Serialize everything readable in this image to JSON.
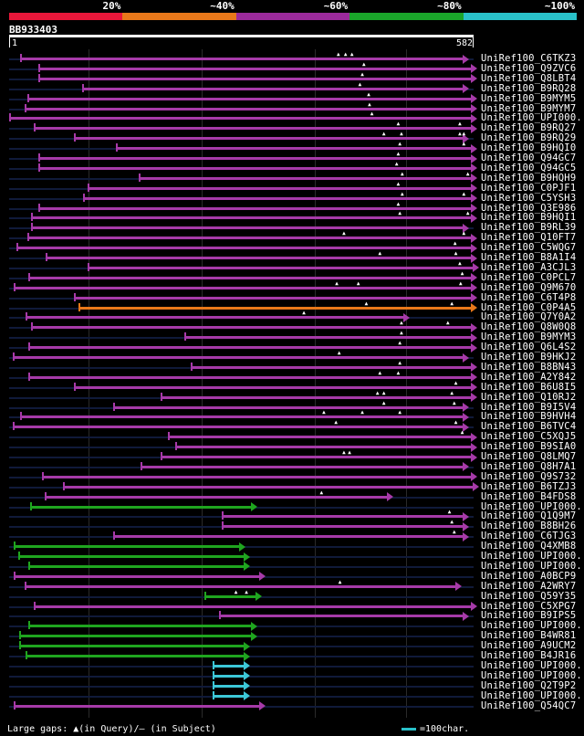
{
  "scale": {
    "labels": [
      "20%",
      "~40%",
      "~60%",
      "~80%",
      "~100%"
    ],
    "colors": [
      "#e8173a",
      "#e8781a",
      "#9b2a9b",
      "#1aa52a",
      "#29c1c9"
    ]
  },
  "query": {
    "id": "BB933403",
    "start": "1",
    "end": "582",
    "length": 582
  },
  "legend": {
    "text": "Large gaps: ▲(in Query)/– (in Subject)",
    "unit": "=100char."
  },
  "colors": {
    "purple": "#a63aa8",
    "orange": "#e8781a",
    "green": "#1fa51f",
    "cyan": "#3cc8d8",
    "track": "#101a3a"
  },
  "hits": [
    {
      "label": "UniRef100_C6TKZ3",
      "color": "purple",
      "start": 15,
      "end": 570,
      "qgaps": [
        413,
        422,
        430
      ]
    },
    {
      "label": "UniRef100_Q9ZVC6",
      "color": "purple",
      "start": 38,
      "end": 580,
      "qgaps": [
        445
      ]
    },
    {
      "label": "UniRef100_Q8LBT4",
      "color": "purple",
      "start": 38,
      "end": 580,
      "qgaps": [
        443
      ]
    },
    {
      "label": "UniRef100_B9RQ28",
      "color": "purple",
      "start": 92,
      "end": 570,
      "qgaps": [
        440
      ]
    },
    {
      "label": "UniRef100_B9MYM5",
      "color": "purple",
      "start": 24,
      "end": 580,
      "qgaps": [
        451
      ]
    },
    {
      "label": "UniRef100_B9MYM7",
      "color": "purple",
      "start": 20,
      "end": 580,
      "qgaps": [
        452
      ]
    },
    {
      "label": "UniRef100_UPI000..",
      "color": "purple",
      "start": 1,
      "end": 580,
      "qgaps": [
        455
      ]
    },
    {
      "label": "UniRef100_B9RQ27",
      "color": "purple",
      "start": 32,
      "end": 580,
      "qgaps": [
        488,
        565
      ]
    },
    {
      "label": "UniRef100_B9RQ29",
      "color": "purple",
      "start": 82,
      "end": 570,
      "qgaps": [
        470,
        492,
        565,
        570
      ]
    },
    {
      "label": "UniRef100_B9HQI0",
      "color": "purple",
      "start": 135,
      "end": 580,
      "qgaps": [
        490,
        570
      ]
    },
    {
      "label": "UniRef100_Q94GC7",
      "color": "purple",
      "start": 38,
      "end": 580,
      "qgaps": [
        488
      ]
    },
    {
      "label": "UniRef100_Q94GC5",
      "color": "purple",
      "start": 38,
      "end": 580,
      "qgaps": [
        486
      ]
    },
    {
      "label": "UniRef100_B9HQH9",
      "color": "purple",
      "start": 163,
      "end": 580,
      "qgaps": [
        493,
        575
      ]
    },
    {
      "label": "UniRef100_C0PJF1",
      "color": "purple",
      "start": 99,
      "end": 580,
      "qgaps": [
        488
      ]
    },
    {
      "label": "UniRef100_C5YSH3",
      "color": "purple",
      "start": 93,
      "end": 580,
      "qgaps": [
        493,
        570
      ]
    },
    {
      "label": "UniRef100_Q3E986",
      "color": "purple",
      "start": 38,
      "end": 580,
      "qgaps": [
        488
      ]
    },
    {
      "label": "UniRef100_B9HQI1",
      "color": "purple",
      "start": 28,
      "end": 580,
      "qgaps": [
        490,
        575
      ]
    },
    {
      "label": "UniRef100_B9RL39",
      "color": "purple",
      "start": 28,
      "end": 570,
      "qgaps": []
    },
    {
      "label": "UniRef100_Q10FT7",
      "color": "purple",
      "start": 24,
      "end": 580,
      "qgaps": [
        420,
        570
      ]
    },
    {
      "label": "UniRef100_C5WQG7",
      "color": "purple",
      "start": 10,
      "end": 580,
      "qgaps": [
        559
      ]
    },
    {
      "label": "UniRef100_B8A1I4",
      "color": "purple",
      "start": 47,
      "end": 580,
      "qgaps": [
        465,
        560
      ]
    },
    {
      "label": "UniRef100_A3CJL3",
      "color": "purple",
      "start": 99,
      "end": 585,
      "qgaps": [
        565
      ]
    },
    {
      "label": "UniRef100_C0PCL7",
      "color": "purple",
      "start": 25,
      "end": 580,
      "qgaps": [
        568
      ]
    },
    {
      "label": "UniRef100_Q9M670",
      "color": "purple",
      "start": 7,
      "end": 580,
      "qgaps": [
        411,
        438,
        566
      ]
    },
    {
      "label": "UniRef100_C6T4P8",
      "color": "purple",
      "start": 82,
      "end": 580,
      "qgaps": []
    },
    {
      "label": "UniRef100_C0P4A5",
      "color": "orange",
      "start": 88,
      "end": 580,
      "qgaps": [
        448,
        555
      ]
    },
    {
      "label": "UniRef100_Q7Y0A2",
      "color": "purple",
      "start": 22,
      "end": 495,
      "qgaps": [
        370
      ]
    },
    {
      "label": "UniRef100_Q8W0Q8",
      "color": "purple",
      "start": 28,
      "end": 580,
      "qgaps": [
        492,
        550
      ]
    },
    {
      "label": "UniRef100_B9MYM3",
      "color": "purple",
      "start": 220,
      "end": 580,
      "qgaps": [
        492
      ]
    },
    {
      "label": "UniRef100_Q6L4S2",
      "color": "purple",
      "start": 25,
      "end": 580,
      "qgaps": [
        490
      ]
    },
    {
      "label": "UniRef100_B9HKJ2",
      "color": "purple",
      "start": 5,
      "end": 570,
      "qgaps": [
        414
      ]
    },
    {
      "label": "UniRef100_B8BN43",
      "color": "purple",
      "start": 228,
      "end": 580,
      "qgaps": [
        490
      ]
    },
    {
      "label": "UniRef100_A2Y842",
      "color": "purple",
      "start": 25,
      "end": 580,
      "qgaps": [
        465,
        488
      ]
    },
    {
      "label": "UniRef100_B6U8I5",
      "color": "purple",
      "start": 82,
      "end": 580,
      "qgaps": [
        560
      ]
    },
    {
      "label": "UniRef100_Q10RJ2",
      "color": "purple",
      "start": 190,
      "end": 580,
      "qgaps": [
        462,
        470,
        555
      ]
    },
    {
      "label": "UniRef100_B9I5V4",
      "color": "purple",
      "start": 131,
      "end": 570,
      "qgaps": [
        470,
        558
      ]
    },
    {
      "label": "UniRef100_B9HVH4",
      "color": "purple",
      "start": 15,
      "end": 570,
      "qgaps": [
        395,
        443,
        490
      ]
    },
    {
      "label": "UniRef100_B6TVC4",
      "color": "purple",
      "start": 5,
      "end": 570,
      "qgaps": [
        410,
        560
      ]
    },
    {
      "label": "UniRef100_C5XQJ5",
      "color": "purple",
      "start": 200,
      "end": 580,
      "qgaps": [
        568
      ]
    },
    {
      "label": "UniRef100_B9SIA0",
      "color": "purple",
      "start": 209,
      "end": 580,
      "qgaps": []
    },
    {
      "label": "UniRef100_Q8LMQ7",
      "color": "purple",
      "start": 190,
      "end": 580,
      "qgaps": [
        420,
        427
      ]
    },
    {
      "label": "UniRef100_Q8H7A1",
      "color": "purple",
      "start": 165,
      "end": 570,
      "qgaps": []
    },
    {
      "label": "UniRef100_Q9S732",
      "color": "purple",
      "start": 42,
      "end": 580,
      "qgaps": []
    },
    {
      "label": "UniRef100_B6TZJ3",
      "color": "purple",
      "start": 68,
      "end": 585,
      "qgaps": []
    },
    {
      "label": "UniRef100_B4FDS8",
      "color": "purple",
      "start": 45,
      "end": 475,
      "qgaps": [
        392
      ]
    },
    {
      "label": "UniRef100_UPI000..",
      "color": "green",
      "start": 27,
      "end": 305,
      "qgaps": []
    },
    {
      "label": "UniRef100_Q1Q9M7",
      "color": "purple",
      "start": 267,
      "end": 570,
      "qgaps": [
        552
      ]
    },
    {
      "label": "UniRef100_B8BH26",
      "color": "purple",
      "start": 267,
      "end": 570,
      "qgaps": [
        555
      ]
    },
    {
      "label": "UniRef100_C6TJG3",
      "color": "purple",
      "start": 131,
      "end": 570,
      "qgaps": [
        558
      ]
    },
    {
      "label": "UniRef100_Q4XMB8",
      "color": "green",
      "start": 7,
      "end": 290,
      "qgaps": []
    },
    {
      "label": "UniRef100_UPI000..",
      "color": "green",
      "start": 12,
      "end": 295,
      "qgaps": []
    },
    {
      "label": "UniRef100_UPI000..",
      "color": "green",
      "start": 25,
      "end": 295,
      "qgaps": []
    },
    {
      "label": "UniRef100_A0BCP9",
      "color": "purple",
      "start": 7,
      "end": 315,
      "qgaps": []
    },
    {
      "label": "UniRef100_A2WRY7",
      "color": "purple",
      "start": 20,
      "end": 560,
      "qgaps": [
        415
      ]
    },
    {
      "label": "UniRef100_Q59Y35",
      "color": "green",
      "start": 245,
      "end": 310,
      "qgaps": [
        285,
        298
      ]
    },
    {
      "label": "UniRef100_C5XPG7",
      "color": "purple",
      "start": 32,
      "end": 580,
      "qgaps": []
    },
    {
      "label": "UniRef100_B9IPS5",
      "color": "purple",
      "start": 264,
      "end": 570,
      "qgaps": []
    },
    {
      "label": "UniRef100_UPI000..",
      "color": "green",
      "start": 25,
      "end": 305,
      "qgaps": []
    },
    {
      "label": "UniRef100_B4WR81",
      "color": "green",
      "start": 14,
      "end": 305,
      "qgaps": []
    },
    {
      "label": "UniRef100_A9UCM2",
      "color": "green",
      "start": 14,
      "end": 295,
      "qgaps": []
    },
    {
      "label": "UniRef100_B4JR16",
      "color": "green",
      "start": 22,
      "end": 295,
      "qgaps": []
    },
    {
      "label": "UniRef100_UPI000..",
      "color": "cyan",
      "start": 255,
      "end": 295,
      "qgaps": []
    },
    {
      "label": "UniRef100_UPI000..",
      "color": "cyan",
      "start": 255,
      "end": 295,
      "qgaps": []
    },
    {
      "label": "UniRef100_Q2T9P2",
      "color": "cyan",
      "start": 255,
      "end": 295,
      "qgaps": []
    },
    {
      "label": "UniRef100_UPI000..",
      "color": "cyan",
      "start": 255,
      "end": 295,
      "qgaps": []
    },
    {
      "label": "UniRef100_Q54QC7",
      "color": "purple",
      "start": 7,
      "end": 315,
      "qgaps": []
    }
  ]
}
